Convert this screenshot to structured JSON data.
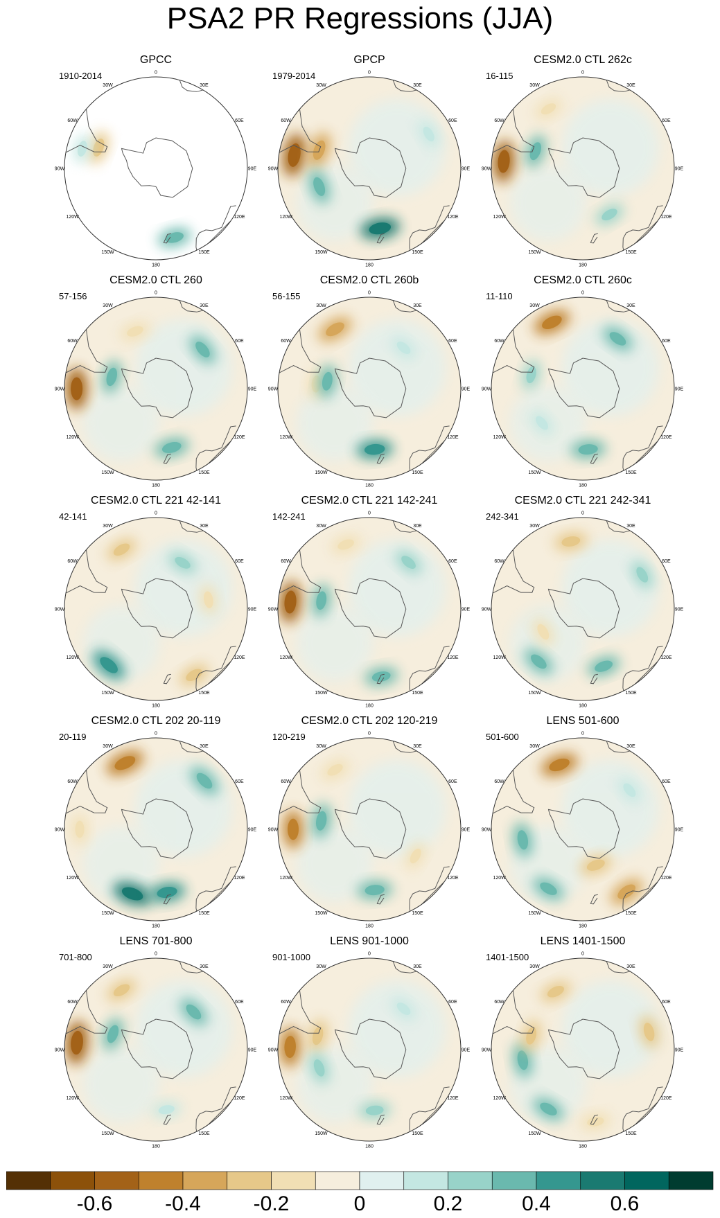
{
  "title": "PSA2 PR Regressions (JJA)",
  "longitude_labels": [
    "0",
    "30E",
    "60E",
    "90E",
    "120E",
    "150E",
    "180",
    "150W",
    "120W",
    "90W",
    "60W",
    "30W"
  ],
  "chart_data": {
    "type": "heatmap",
    "projection": "south polar stereographic",
    "variable": "PR regression onto PSA2",
    "season": "JJA",
    "panels": [
      {
        "title": "GPCC",
        "years": "1910-2014",
        "blobs": [
          {
            "lon": -70,
            "lat": -50,
            "value": -0.3
          },
          {
            "lon": -75,
            "lat": -40,
            "value": 0.15
          },
          {
            "lon": 165,
            "lat": -43,
            "value": 0.3
          }
        ]
      },
      {
        "title": "GPCP",
        "years": "1979-2014",
        "blobs": [
          {
            "lon": -80,
            "lat": -40,
            "value": -0.6
          },
          {
            "lon": -70,
            "lat": -55,
            "value": -0.4
          },
          {
            "lon": -110,
            "lat": -55,
            "value": 0.35
          },
          {
            "lon": 170,
            "lat": -50,
            "value": 0.5
          },
          {
            "lon": 60,
            "lat": -45,
            "value": 0.15
          }
        ]
      },
      {
        "title": "CESM2.0 CTL 262c",
        "years": "16-115",
        "blobs": [
          {
            "lon": -85,
            "lat": -38,
            "value": -0.55
          },
          {
            "lon": -70,
            "lat": -57,
            "value": 0.3
          },
          {
            "lon": -30,
            "lat": -45,
            "value": -0.15
          },
          {
            "lon": 150,
            "lat": -55,
            "value": 0.2
          }
        ]
      },
      {
        "title": "CESM2.0 CTL 260",
        "years": "57-156",
        "blobs": [
          {
            "lon": -90,
            "lat": -38,
            "value": -0.55
          },
          {
            "lon": -20,
            "lat": -50,
            "value": -0.2
          },
          {
            "lon": 50,
            "lat": -50,
            "value": 0.3
          },
          {
            "lon": 165,
            "lat": -50,
            "value": 0.35
          },
          {
            "lon": -75,
            "lat": -60,
            "value": 0.3
          }
        ]
      },
      {
        "title": "CESM2.0 CTL 260b",
        "years": "56-155",
        "blobs": [
          {
            "lon": -30,
            "lat": -45,
            "value": -0.4
          },
          {
            "lon": -85,
            "lat": -55,
            "value": -0.2
          },
          {
            "lon": 175,
            "lat": -50,
            "value": 0.4
          },
          {
            "lon": -80,
            "lat": -62,
            "value": 0.3
          },
          {
            "lon": 40,
            "lat": -55,
            "value": 0.15
          }
        ]
      },
      {
        "title": "CESM2.0 CTL 260c",
        "years": "11-110",
        "blobs": [
          {
            "lon": -25,
            "lat": -42,
            "value": -0.45
          },
          {
            "lon": 35,
            "lat": -50,
            "value": 0.3
          },
          {
            "lon": 175,
            "lat": -50,
            "value": 0.35
          },
          {
            "lon": -75,
            "lat": -55,
            "value": 0.2
          },
          {
            "lon": -130,
            "lat": -55,
            "value": 0.15
          }
        ]
      },
      {
        "title": "CESM2.0 CTL 221 42-141",
        "years": "42-141",
        "blobs": [
          {
            "lon": -140,
            "lat": -42,
            "value": 0.45
          },
          {
            "lon": -30,
            "lat": -45,
            "value": -0.25
          },
          {
            "lon": 80,
            "lat": -55,
            "value": -0.2
          },
          {
            "lon": 30,
            "lat": -55,
            "value": 0.2
          },
          {
            "lon": 150,
            "lat": -40,
            "value": -0.25
          }
        ]
      },
      {
        "title": "CESM2.0 CTL 221 142-241",
        "years": "142-241",
        "blobs": [
          {
            "lon": -85,
            "lat": -38,
            "value": -0.55
          },
          {
            "lon": -80,
            "lat": -58,
            "value": 0.3
          },
          {
            "lon": -20,
            "lat": -45,
            "value": -0.2
          },
          {
            "lon": 170,
            "lat": -45,
            "value": 0.3
          },
          {
            "lon": 40,
            "lat": -50,
            "value": 0.2
          }
        ]
      },
      {
        "title": "CESM2.0 CTL 221 242-341",
        "years": "242-341",
        "blobs": [
          {
            "lon": -10,
            "lat": -45,
            "value": -0.3
          },
          {
            "lon": -140,
            "lat": -45,
            "value": 0.3
          },
          {
            "lon": 160,
            "lat": -50,
            "value": 0.3
          },
          {
            "lon": 60,
            "lat": -45,
            "value": 0.2
          },
          {
            "lon": -120,
            "lat": -60,
            "value": -0.2
          }
        ]
      },
      {
        "title": "CESM2.0 CTL 202 20-119",
        "years": "20-119",
        "blobs": [
          {
            "lon": -25,
            "lat": -42,
            "value": -0.5
          },
          {
            "lon": 45,
            "lat": -45,
            "value": 0.35
          },
          {
            "lon": -160,
            "lat": -45,
            "value": 0.5
          },
          {
            "lon": 170,
            "lat": -48,
            "value": 0.4
          },
          {
            "lon": -90,
            "lat": -40,
            "value": -0.2
          }
        ]
      },
      {
        "title": "CESM2.0 CTL 202 120-219",
        "years": "120-219",
        "blobs": [
          {
            "lon": -90,
            "lat": -40,
            "value": -0.45
          },
          {
            "lon": -80,
            "lat": -58,
            "value": 0.35
          },
          {
            "lon": 175,
            "lat": -50,
            "value": 0.35
          },
          {
            "lon": -30,
            "lat": -45,
            "value": -0.2
          },
          {
            "lon": 120,
            "lat": -55,
            "value": -0.15
          }
        ]
      },
      {
        "title": "LENS 501-600",
        "years": "501-600",
        "blobs": [
          {
            "lon": -20,
            "lat": -45,
            "value": -0.45
          },
          {
            "lon": -100,
            "lat": -50,
            "value": 0.35
          },
          {
            "lon": -150,
            "lat": -45,
            "value": 0.3
          },
          {
            "lon": 145,
            "lat": -40,
            "value": -0.4
          },
          {
            "lon": 160,
            "lat": -65,
            "value": -0.3
          },
          {
            "lon": 50,
            "lat": -50,
            "value": 0.15
          }
        ]
      },
      {
        "title": "LENS 701-800",
        "years": "701-800",
        "blobs": [
          {
            "lon": -85,
            "lat": -38,
            "value": -0.6
          },
          {
            "lon": -30,
            "lat": -45,
            "value": -0.25
          },
          {
            "lon": 45,
            "lat": -55,
            "value": 0.3
          },
          {
            "lon": -70,
            "lat": -60,
            "value": 0.3
          },
          {
            "lon": 170,
            "lat": -50,
            "value": 0.15
          }
        ]
      },
      {
        "title": "LENS 901-1000",
        "years": "901-1000",
        "blobs": [
          {
            "lon": -88,
            "lat": -38,
            "value": -0.5
          },
          {
            "lon": -75,
            "lat": -55,
            "value": -0.3
          },
          {
            "lon": -110,
            "lat": -55,
            "value": 0.25
          },
          {
            "lon": 175,
            "lat": -50,
            "value": 0.25
          },
          {
            "lon": 40,
            "lat": -55,
            "value": 0.15
          }
        ]
      },
      {
        "title": "LENS 1401-1500",
        "years": "1401-1500",
        "blobs": [
          {
            "lon": -100,
            "lat": -50,
            "value": 0.35
          },
          {
            "lon": -150,
            "lat": -45,
            "value": 0.3
          },
          {
            "lon": -25,
            "lat": -48,
            "value": -0.25
          },
          {
            "lon": 75,
            "lat": -45,
            "value": -0.3
          },
          {
            "lon": 170,
            "lat": -42,
            "value": -0.2
          },
          {
            "lon": -75,
            "lat": -55,
            "value": -0.25
          }
        ]
      }
    ],
    "colorbar": {
      "bounds": [
        -0.8,
        -0.7,
        -0.6,
        -0.5,
        -0.4,
        -0.3,
        -0.2,
        -0.1,
        0,
        0.1,
        0.2,
        0.3,
        0.4,
        0.5,
        0.6,
        0.7,
        0.8
      ],
      "colors": [
        "#543005",
        "#8c510a",
        "#a36218",
        "#bf812d",
        "#d6a65a",
        "#e6c889",
        "#f1dfb4",
        "#f6eedd",
        "#e0f0ef",
        "#c4e7e2",
        "#98d3c9",
        "#6ab9ae",
        "#35978f",
        "#1a7a71",
        "#01665e",
        "#003c30"
      ],
      "tick_labels": [
        "-0.6",
        "-0.4",
        "-0.2",
        "0",
        "0.2",
        "0.4",
        "0.6"
      ],
      "tick_values": [
        -0.6,
        -0.4,
        -0.2,
        0,
        0.2,
        0.4,
        0.6
      ]
    }
  }
}
